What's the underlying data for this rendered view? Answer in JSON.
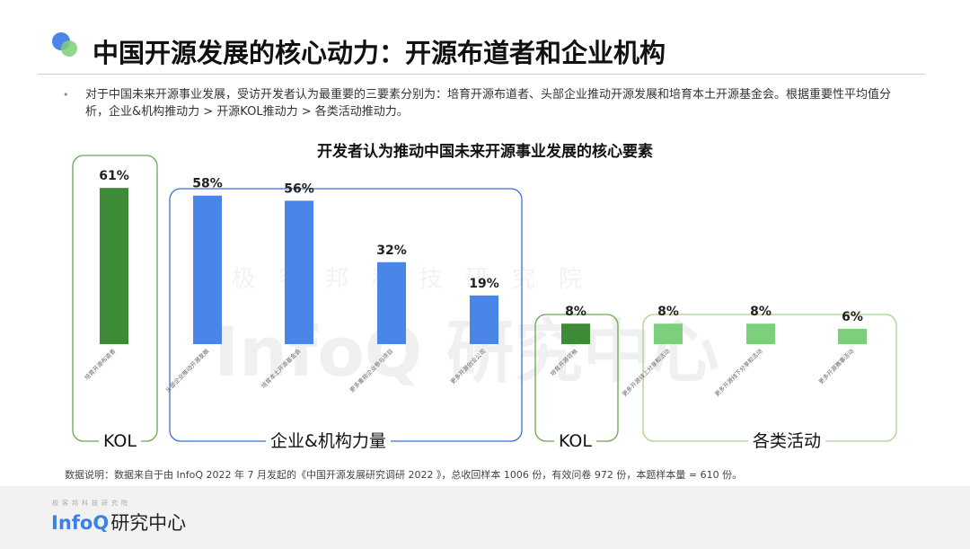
{
  "header": {
    "title": "中国开源发展的核心动力：开源布道者和企业机构"
  },
  "intro": {
    "bullet": "•",
    "text": "对于中国未来开源事业发展，受访开发者认为最重要的三要素分别为：培育开源布道者、头部企业推动开源发展和培育本土开源基金会。根据重要性平均值分析，企业&机构推动力 > 开源KOL推动力 > 各类活动推动力。"
  },
  "chart_data": {
    "type": "bar",
    "title": "开发者认为推动中国未来开源事业发展的核心要素",
    "categories": [
      "培育开源布道者",
      "头部企业推动开源发展",
      "培育本土开源基金会",
      "更多重视企业参与项目",
      "更多开源创业公司",
      "培育开源领袖",
      "更多开源线上分享和活动",
      "更多开源线下分享和活动",
      "更多开源赛事活动"
    ],
    "values": [
      61,
      58,
      56,
      32,
      19,
      8,
      8,
      8,
      6
    ],
    "value_labels": [
      "61%",
      "58%",
      "56%",
      "32%",
      "19%",
      "8%",
      "8%",
      "8%",
      "6%"
    ],
    "groups": [
      {
        "label": "KOL",
        "members": [
          0
        ]
      },
      {
        "label": "企业&机构力量",
        "members": [
          1,
          2,
          3,
          4
        ]
      },
      {
        "label": "KOL",
        "members": [
          5
        ]
      },
      {
        "label": "各类活动",
        "members": [
          6,
          7,
          8
        ]
      }
    ],
    "colors": {
      "dark_green": "#3d8b37",
      "blue": "#4a86e8",
      "light_green": "#7ccf7b",
      "blue_frame": "#3b6fd8",
      "green_frame": "#a9d18e",
      "dark_green_frame": "#6aa84f"
    },
    "ylim": [
      0,
      70
    ],
    "xlabel": "",
    "ylabel": "",
    "grid": false,
    "legend": "none"
  },
  "footnote": "数据说明：数据来自于由 InfoQ 2022 年 7 月发起的《中国开源发展研究调研 2022 》，总收回样本 1006 份，有效问卷 972 份，本题样本量 = 610 份。",
  "watermark": {
    "text": "InfoQ 研究中心",
    "small": "极客邦科技研究院"
  },
  "brand": {
    "small": "极客邦科技研究院",
    "name": "InfoQ",
    "name_cn": "研究中心"
  }
}
